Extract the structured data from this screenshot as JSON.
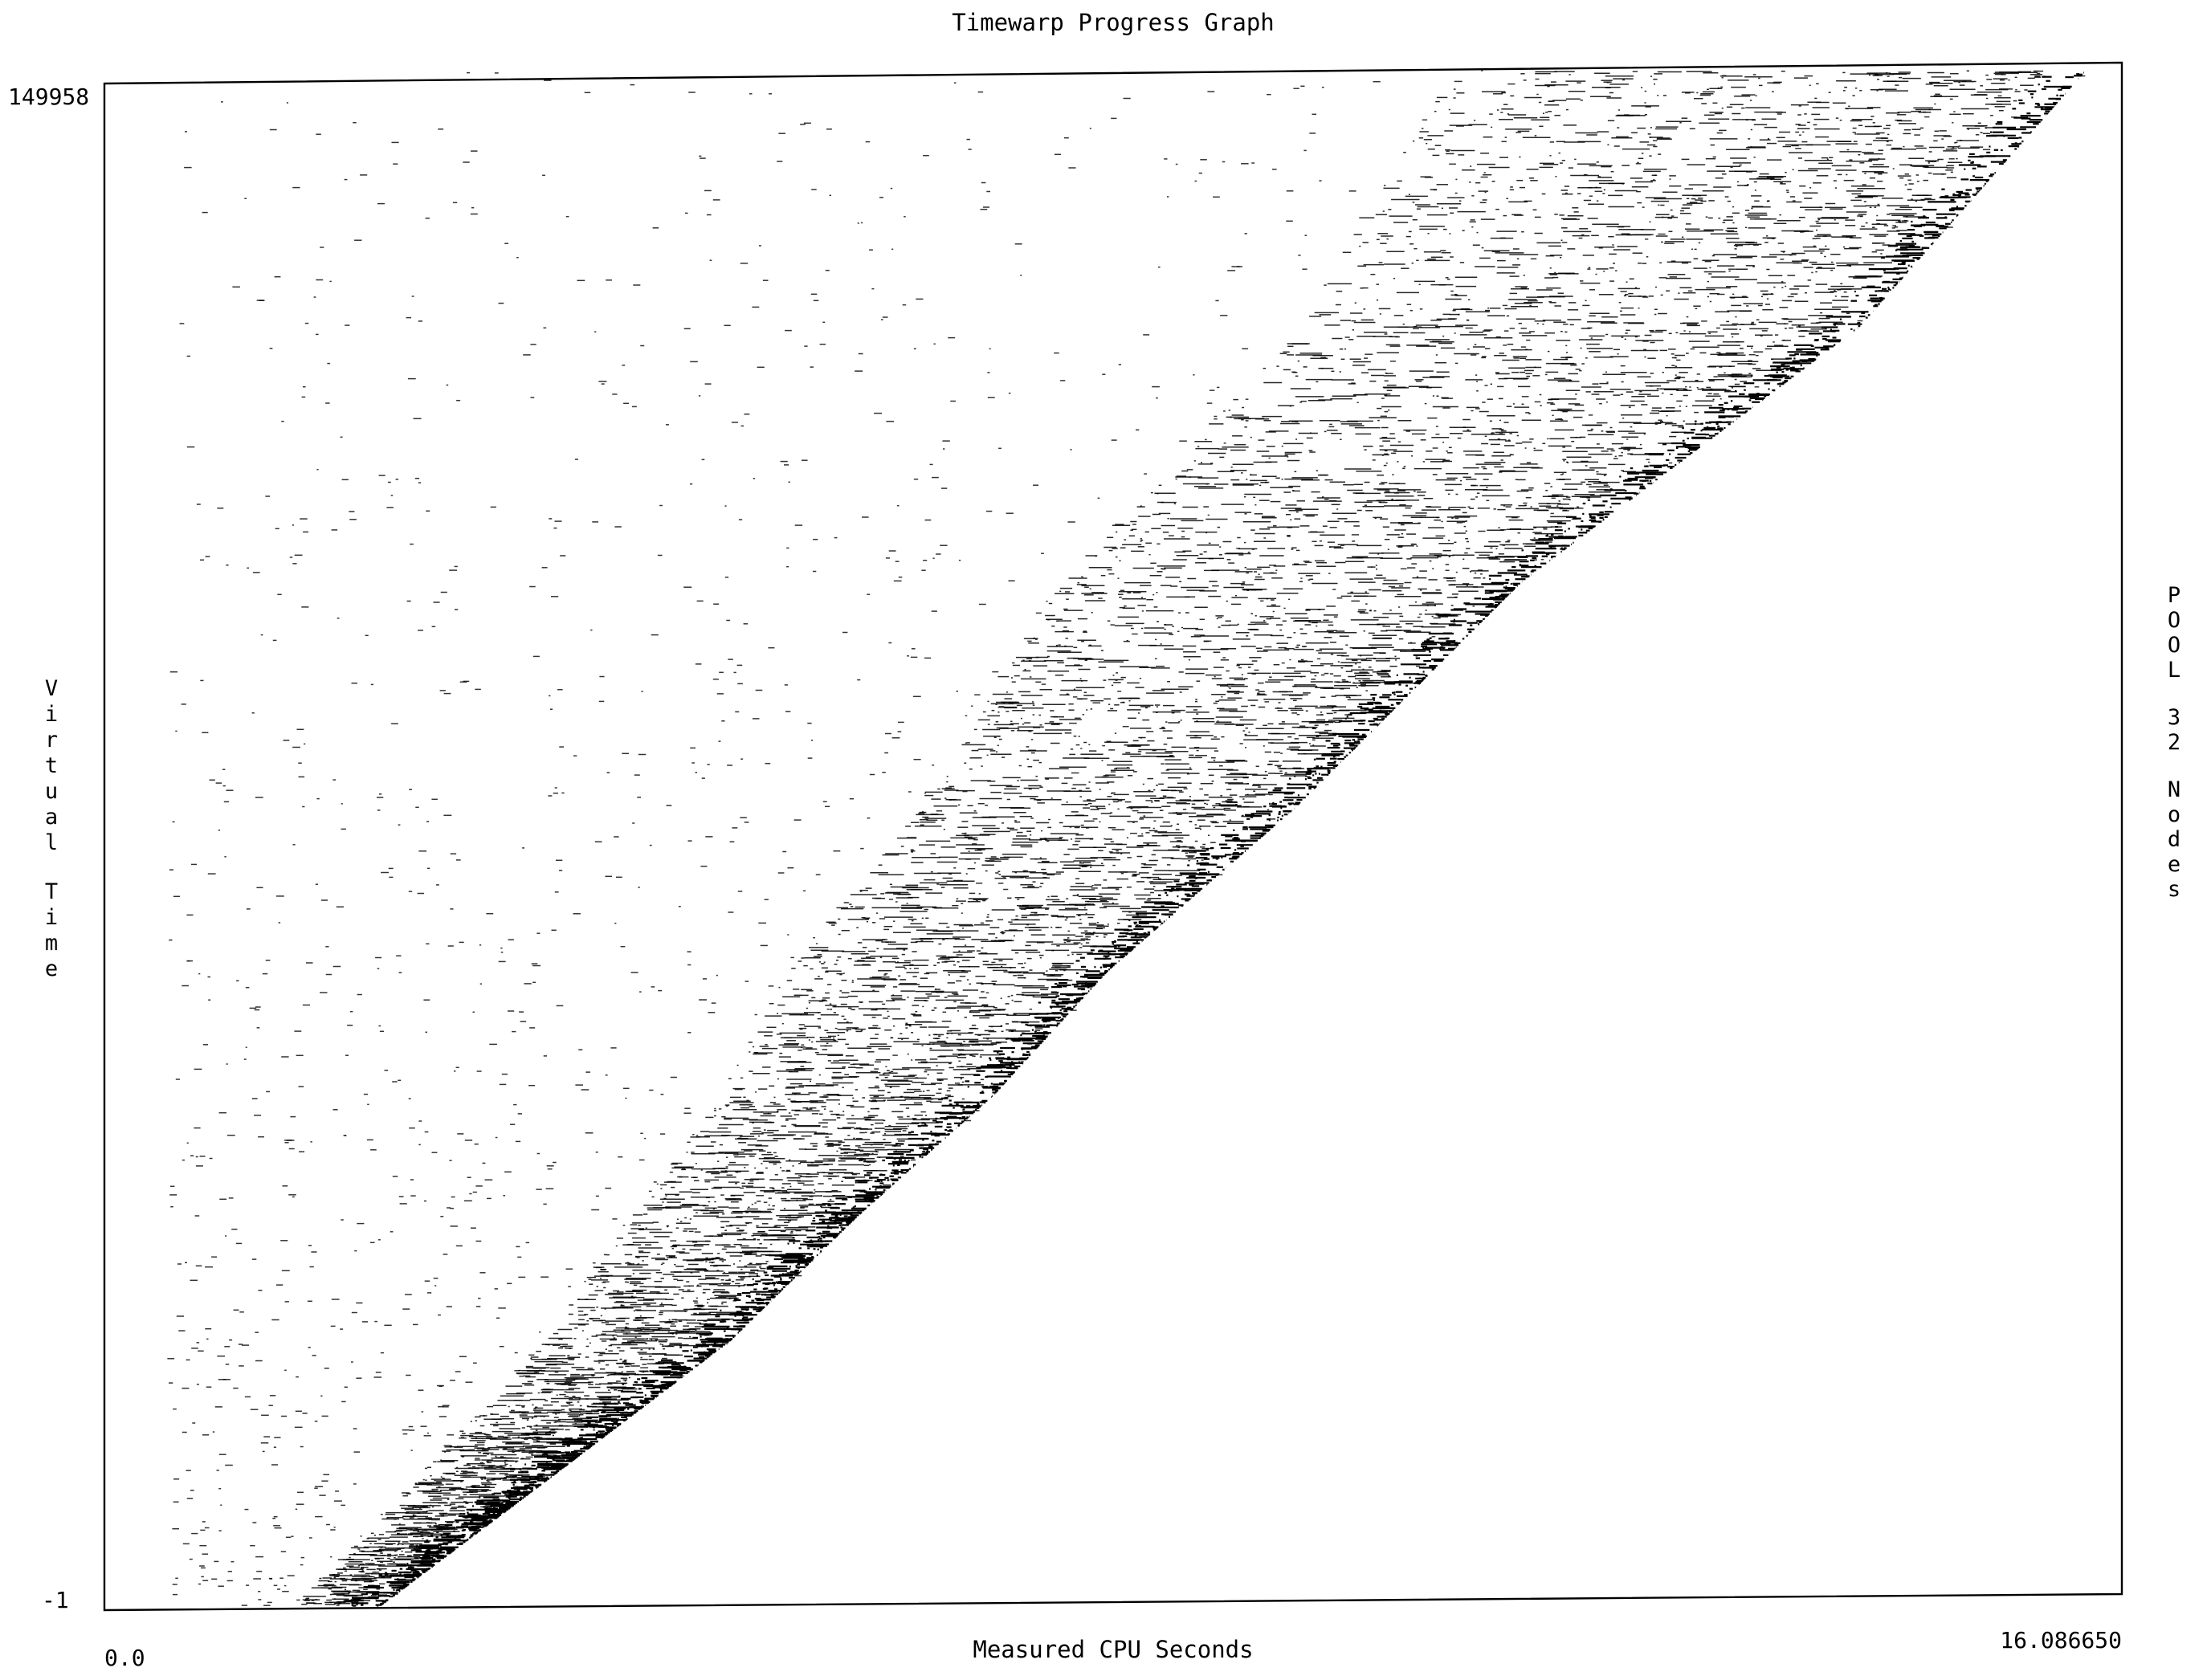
{
  "chart_data": {
    "type": "scatter",
    "title": "Timewarp Progress Graph",
    "xlabel": "Measured CPU Seconds",
    "ylabel": "Virtual Time",
    "right_label": "POOL 32 Nodes",
    "xlim": [
      0.0,
      16.08665
    ],
    "ylim": [
      -1,
      149958
    ],
    "x_tick_labels": [
      "0.0",
      "16.086650"
    ],
    "y_tick_labels": [
      "-1",
      "149958"
    ],
    "grid": false,
    "legend": "none",
    "marker_color": "#000000",
    "progress_front": {
      "x": [
        2.2,
        3.5,
        5.0,
        6.0,
        7.1,
        8.0,
        9.5,
        11.3,
        14.0,
        15.8
      ],
      "y": [
        0,
        12000,
        26000,
        38000,
        50000,
        62000,
        78000,
        100000,
        125000,
        149958
      ]
    },
    "lead_band_seconds": 0.7,
    "events_note": "dense clusters of short horizontal event segments forming a diagonal band; sparse scattered events to the upper-left"
  }
}
